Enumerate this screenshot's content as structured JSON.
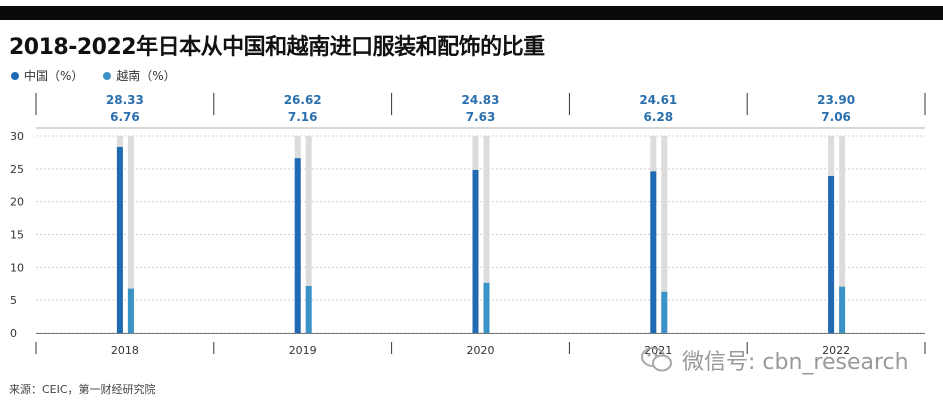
{
  "title": "2018-2022年日本从中国和越南进口服装和配饰的比重",
  "source": "来源：CEIC，第一财经研究院",
  "watermark": "微信号: cbn_research",
  "colors": {
    "china": "#1f6ab3",
    "vietnam": "#3b92c6",
    "track": "#dcdcdc",
    "label": "#2a6fae"
  },
  "chart_data": {
    "type": "bar",
    "categories": [
      "2018",
      "2019",
      "2020",
      "2021",
      "2022"
    ],
    "series": [
      {
        "name": "中国（%）",
        "values": [
          28.33,
          26.62,
          24.83,
          24.61,
          23.9
        ]
      },
      {
        "name": "越南（%）",
        "values": [
          6.76,
          7.16,
          7.63,
          6.28,
          7.06
        ]
      }
    ],
    "value_labels": [
      [
        "28.33",
        "26.62",
        "24.83",
        "24.61",
        "23.90"
      ],
      [
        "6.76",
        "7.16",
        "7.63",
        "6.28",
        "7.06"
      ]
    ],
    "ylim": [
      0,
      30
    ],
    "yticks": [
      "0",
      "5",
      "10",
      "15",
      "20",
      "25",
      "30"
    ],
    "legend": "top-left",
    "grid": true
  }
}
